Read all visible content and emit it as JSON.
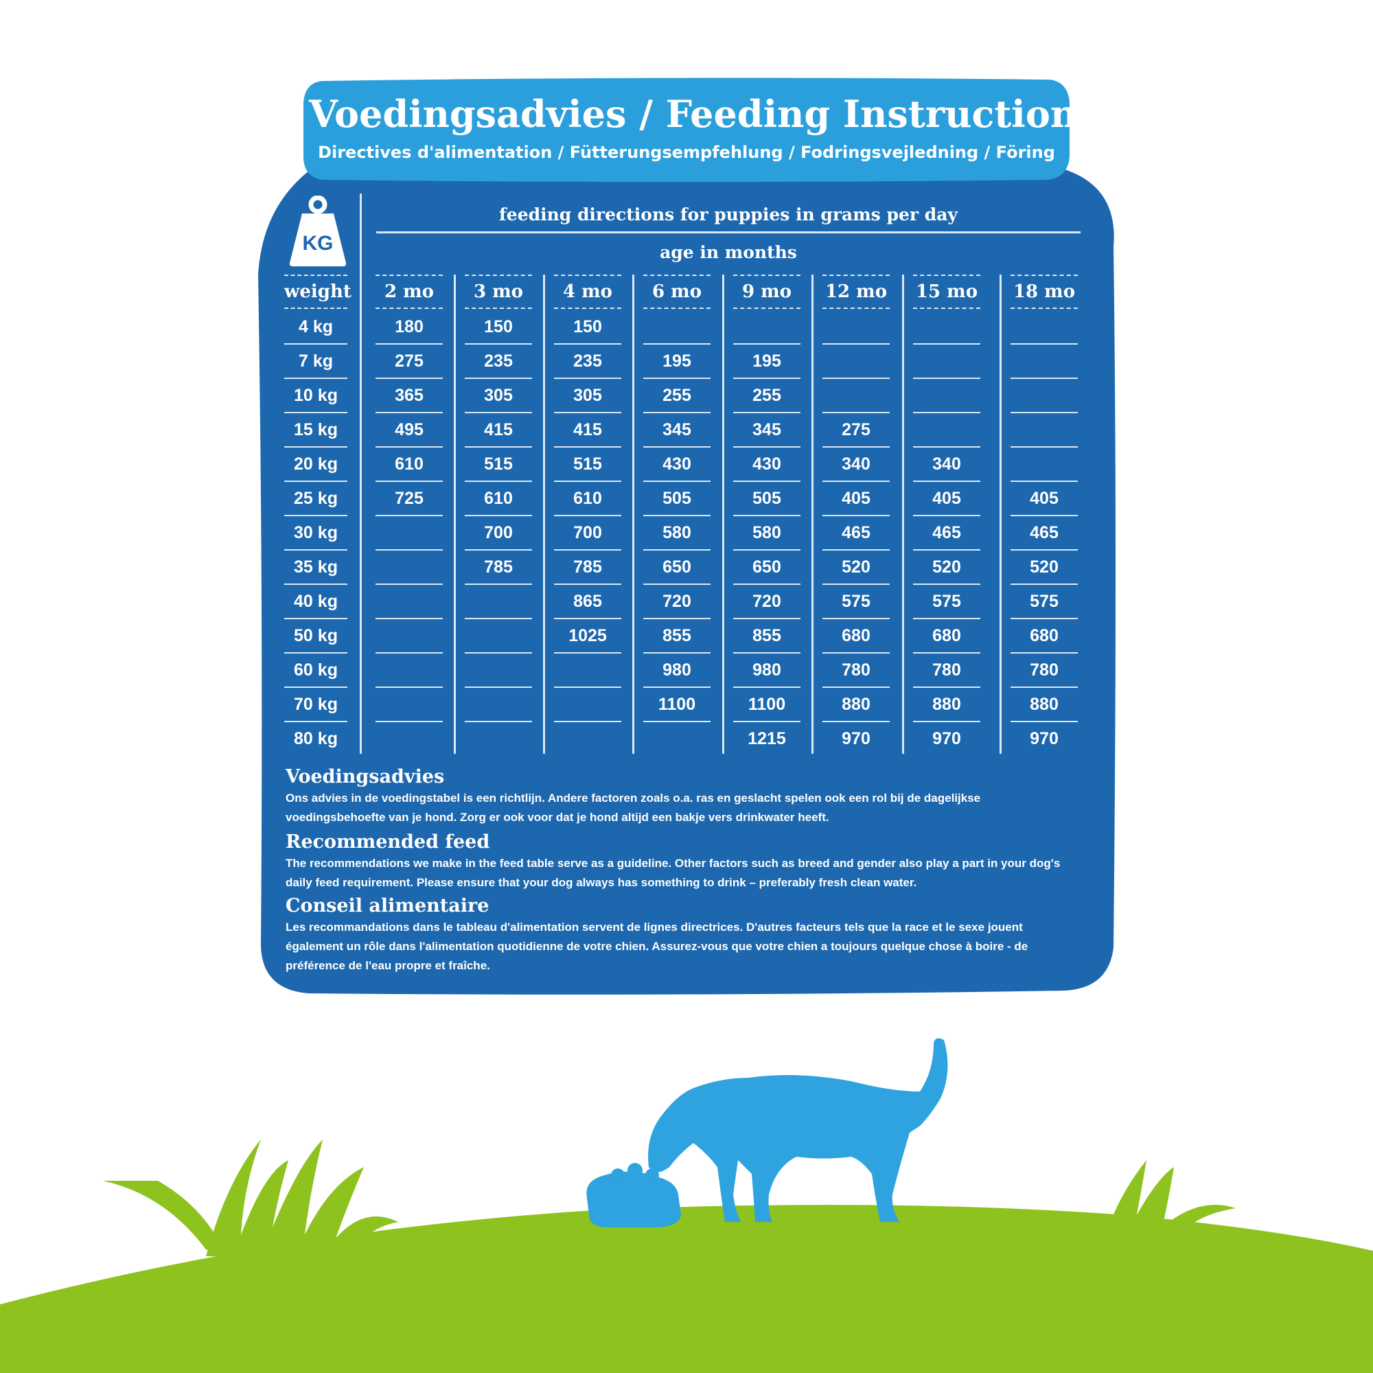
{
  "header": {
    "title": "Voedingsadvies / Feeding Instruction",
    "subtitle": "Directives d'alimentation / Fütterungsempfehlung / Fodringsvejledning / Föring"
  },
  "icon": {
    "kg_label": "KG",
    "weight_icon": "kg-weight-icon"
  },
  "table": {
    "heading": "feeding directions for puppies in grams per day",
    "age_label": "age in months",
    "row_header": "weight",
    "columns": [
      "2 mo",
      "3 mo",
      "4 mo",
      "6 mo",
      "9 mo",
      "12 mo",
      "15 mo",
      "18 mo"
    ],
    "rows": [
      {
        "weight": "4 kg",
        "values": [
          "180",
          "150",
          "150",
          "",
          "",
          "",
          "",
          ""
        ]
      },
      {
        "weight": "7 kg",
        "values": [
          "275",
          "235",
          "235",
          "195",
          "195",
          "",
          "",
          ""
        ]
      },
      {
        "weight": "10 kg",
        "values": [
          "365",
          "305",
          "305",
          "255",
          "255",
          "",
          "",
          ""
        ]
      },
      {
        "weight": "15 kg",
        "values": [
          "495",
          "415",
          "415",
          "345",
          "345",
          "275",
          "",
          ""
        ]
      },
      {
        "weight": "20 kg",
        "values": [
          "610",
          "515",
          "515",
          "430",
          "430",
          "340",
          "340",
          ""
        ]
      },
      {
        "weight": "25 kg",
        "values": [
          "725",
          "610",
          "610",
          "505",
          "505",
          "405",
          "405",
          "405"
        ]
      },
      {
        "weight": "30 kg",
        "values": [
          "",
          "700",
          "700",
          "580",
          "580",
          "465",
          "465",
          "465"
        ]
      },
      {
        "weight": "35 kg",
        "values": [
          "",
          "785",
          "785",
          "650",
          "650",
          "520",
          "520",
          "520"
        ]
      },
      {
        "weight": "40 kg",
        "values": [
          "",
          "",
          "865",
          "720",
          "720",
          "575",
          "575",
          "575"
        ]
      },
      {
        "weight": "50 kg",
        "values": [
          "",
          "",
          "1025",
          "855",
          "855",
          "680",
          "680",
          "680"
        ]
      },
      {
        "weight": "60 kg",
        "values": [
          "",
          "",
          "",
          "980",
          "980",
          "780",
          "780",
          "780"
        ]
      },
      {
        "weight": "70 kg",
        "values": [
          "",
          "",
          "",
          "1100",
          "1100",
          "880",
          "880",
          "880"
        ]
      },
      {
        "weight": "80 kg",
        "values": [
          "",
          "",
          "",
          "",
          "1215",
          "970",
          "970",
          "970"
        ]
      }
    ]
  },
  "notes": [
    {
      "heading": "Voedingsadvies",
      "text": "Ons advies in de voedingstabel is een richtlijn. Andere factoren zoals o.a. ras en geslacht spelen ook een rol bij de dagelijkse voedingsbehoefte van je hond. Zorg er ook voor dat je hond altijd een bakje vers drinkwater heeft."
    },
    {
      "heading": "Recommended feed",
      "text": "The recommendations we make in the feed table serve as a guideline. Other factors such as breed and gender also play a part in your dog's daily feed requirement. Please ensure that your dog always has something to drink – preferably fresh clean water."
    },
    {
      "heading": "Conseil alimentaire",
      "text": "Les recommandations dans le tableau d'alimentation servent de lignes directrices. D'autres facteurs tels que la race et le sexe jouent également un rôle dans l'alimentation quotidienne de votre chien. Assurez-vous que votre chien a toujours quelque chose à boire - de préférence de l'eau propre et fraîche."
    }
  ],
  "illustration": {
    "dog": "dog-eating-icon",
    "bowl": "food-bowl-icon",
    "grass": "grass-icon"
  },
  "colors": {
    "card": "#1d67ae",
    "header": "#2a9fdc",
    "lines": "#dce8f5",
    "dog": "#2ea3df",
    "grass": "#8dc21f"
  }
}
